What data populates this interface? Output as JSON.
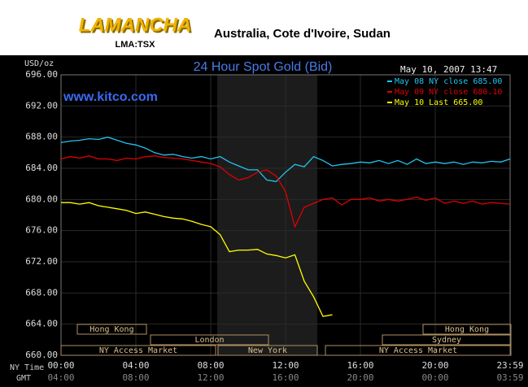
{
  "header": {
    "logo": "LAMANCHA",
    "ticker": "LMA:TSX",
    "tagline": "Australia, Cote d'Ivoire, Sudan"
  },
  "chart_data": {
    "type": "line",
    "title": "24 Hour Spot Gold (Bid)",
    "y_label": "USD/oz",
    "timestamp": "May 10, 2007 13:47",
    "watermark": "www.kitco.com",
    "x_label": "NY Time",
    "x2_label": "GMT",
    "x": [
      0,
      0.5,
      1,
      1.5,
      2,
      2.5,
      3,
      3.5,
      4,
      4.5,
      5,
      5.5,
      6,
      6.5,
      7,
      7.5,
      8,
      8.5,
      9,
      9.5,
      10,
      10.5,
      11,
      11.5,
      12,
      12.5,
      13,
      13.5,
      14,
      14.5,
      15,
      15.5,
      16,
      16.5,
      17,
      17.5,
      18,
      18.5,
      19,
      19.5,
      20,
      20.5,
      21,
      21.5,
      22,
      22.5,
      23,
      23.5,
      24
    ],
    "series": [
      {
        "name": "May 08 NY close 685.00",
        "color": "#22c4f0",
        "values": [
          687.3,
          687.5,
          687.6,
          687.8,
          687.7,
          688,
          687.6,
          687.2,
          687,
          686.6,
          686,
          685.7,
          685.8,
          685.5,
          685.3,
          685.5,
          685.2,
          685.5,
          684.8,
          684.3,
          683.8,
          683.8,
          682.5,
          682.3,
          683.5,
          684.5,
          684.2,
          685.5,
          685,
          684.3,
          684.5,
          684.6,
          684.8,
          684.7,
          685,
          684.6,
          685,
          684.5,
          685.2,
          684.6,
          684.8,
          684.6,
          684.8,
          684.5,
          684.8,
          684.7,
          684.9,
          684.8,
          685.2
        ]
      },
      {
        "name": "May 09 NY close 680.10",
        "color": "#e00000",
        "values": [
          685.2,
          685.5,
          685.3,
          685.6,
          685.2,
          685.2,
          685,
          685.3,
          685.2,
          685.5,
          685.6,
          685.4,
          685.3,
          685.2,
          685,
          684.8,
          684.6,
          684.2,
          683.2,
          682.5,
          682.8,
          683.5,
          683.8,
          683,
          681,
          676.5,
          679,
          679.5,
          680,
          680.2,
          679.3,
          680,
          680,
          680.2,
          679.8,
          680,
          679.8,
          680,
          680.3,
          679.9,
          680.2,
          679.5,
          679.8,
          679.5,
          679.8,
          679.4,
          679.6,
          679.5,
          679.4
        ]
      },
      {
        "name": "May 10 Last 665.00",
        "color": "#ffff00",
        "values": [
          679.6,
          679.6,
          679.4,
          679.6,
          679.2,
          679,
          678.8,
          678.6,
          678.2,
          678.4,
          678.1,
          677.8,
          677.6,
          677.5,
          677.2,
          676.8,
          676.5,
          675.5,
          673.3,
          673.5,
          673.5,
          673.6,
          673,
          672.8,
          672.5,
          672.9,
          669.5,
          667.5,
          665,
          665.2,
          null,
          null,
          null,
          null,
          null,
          null,
          null,
          null,
          null,
          null,
          null,
          null,
          null,
          null,
          null,
          null,
          null,
          null,
          null
        ]
      }
    ],
    "xlim": [
      0,
      24
    ],
    "xticks": [
      {
        "value": 0,
        "label": "00:00"
      },
      {
        "value": 4,
        "label": "04:00"
      },
      {
        "value": 8,
        "label": "08:00"
      },
      {
        "value": 12,
        "label": "12:00"
      },
      {
        "value": 16,
        "label": "16:00"
      },
      {
        "value": 20,
        "label": "20:00"
      },
      {
        "value": 24,
        "label": "23:59"
      }
    ],
    "x2ticks": [
      "04:00",
      "08:00",
      "12:00",
      "16:00",
      "20:00",
      "00:00",
      "03:59"
    ],
    "ylim": [
      660,
      696
    ],
    "yticks": [
      {
        "value": 660,
        "label": "660.00"
      },
      {
        "value": 664,
        "label": "664.00"
      },
      {
        "value": 668,
        "label": "668.00"
      },
      {
        "value": 672,
        "label": "672.00"
      },
      {
        "value": 676,
        "label": "676.00"
      },
      {
        "value": 680,
        "label": "680.00"
      },
      {
        "value": 684,
        "label": "684.00"
      },
      {
        "value": 688,
        "label": "688.00"
      },
      {
        "value": 692,
        "label": "692.00"
      },
      {
        "value": 696,
        "label": "696.00"
      }
    ],
    "grid": true,
    "markets": [
      "Hong Kong",
      "London",
      "NY Access Market",
      "New York",
      "NY Access Market",
      "Sydney",
      "Hong Kong"
    ]
  }
}
